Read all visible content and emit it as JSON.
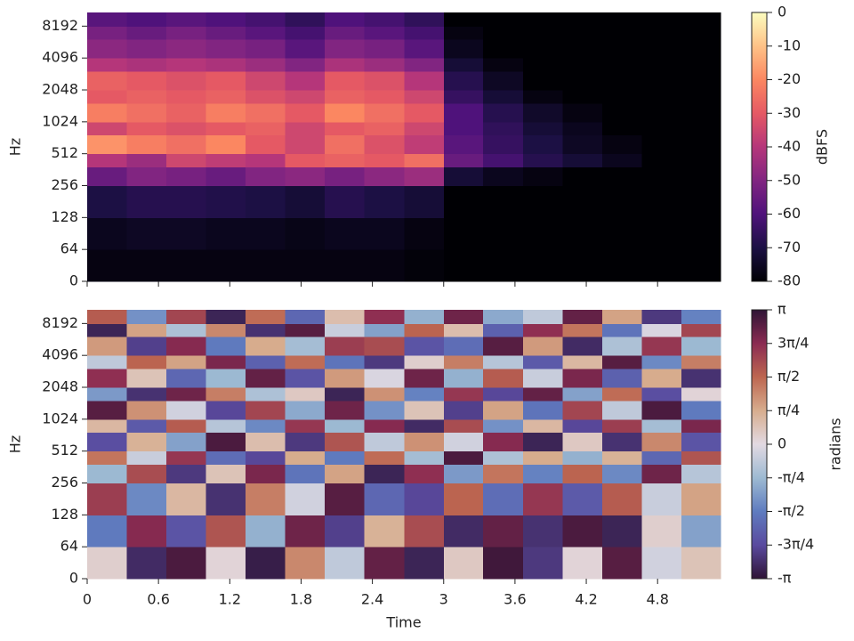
{
  "chart_data": [
    {
      "type": "heatmap",
      "ylabel": "Hz",
      "yscale": "symlog",
      "linthresh": 64,
      "colormap": "magma",
      "xlim": [
        0,
        5.33
      ],
      "ylim": [
        0,
        11025
      ],
      "xticks": [
        0,
        0.6,
        1.2,
        1.8,
        2.4,
        3,
        3.6,
        4.2,
        4.8
      ],
      "show_xtick_labels": false,
      "yticks": [
        0,
        64,
        128,
        256,
        512,
        1024,
        2048,
        4096,
        8192
      ],
      "x_bins": [
        0,
        0.333,
        0.667,
        1,
        1.333,
        1.667,
        2,
        2.333,
        2.667,
        3,
        3.333,
        3.667,
        4,
        4.333,
        4.667,
        5,
        5.33
      ],
      "y_bins": [
        0,
        64,
        128,
        256,
        384,
        512,
        768,
        1024,
        1536,
        2048,
        3072,
        4096,
        6144,
        8192,
        11025
      ],
      "z": [
        [
          -78,
          -78,
          -78,
          -78,
          -78,
          -78,
          -78,
          -78,
          -79,
          -80,
          -80,
          -80,
          -80,
          -80,
          -80,
          -80
        ],
        [
          -76,
          -75,
          -75,
          -76,
          -76,
          -77,
          -76,
          -76,
          -78,
          -80,
          -80,
          -80,
          -80,
          -80,
          -80,
          -80
        ],
        [
          -70,
          -68,
          -68,
          -69,
          -70,
          -72,
          -68,
          -70,
          -72,
          -80,
          -80,
          -80,
          -80,
          -80,
          -80,
          -80
        ],
        [
          -55,
          -50,
          -52,
          -55,
          -50,
          -48,
          -52,
          -48,
          -45,
          -72,
          -76,
          -78,
          -80,
          -80,
          -80,
          -80
        ],
        [
          -40,
          -45,
          -35,
          -38,
          -40,
          -30,
          -28,
          -30,
          -25,
          -55,
          -62,
          -68,
          -72,
          -76,
          -80,
          -80
        ],
        [
          -18,
          -22,
          -25,
          -20,
          -30,
          -35,
          -25,
          -32,
          -38,
          -58,
          -65,
          -70,
          -75,
          -78,
          -80,
          -80
        ],
        [
          -35,
          -30,
          -32,
          -30,
          -28,
          -35,
          -30,
          -28,
          -35,
          -60,
          -66,
          -72,
          -76,
          -80,
          -80,
          -80
        ],
        [
          -22,
          -25,
          -28,
          -22,
          -25,
          -30,
          -20,
          -25,
          -30,
          -60,
          -68,
          -74,
          -78,
          -80,
          -80,
          -80
        ],
        [
          -30,
          -28,
          -30,
          -28,
          -32,
          -35,
          -28,
          -30,
          -35,
          -65,
          -72,
          -78,
          -80,
          -80,
          -80,
          -80
        ],
        [
          -28,
          -30,
          -32,
          -30,
          -35,
          -40,
          -30,
          -32,
          -40,
          -68,
          -75,
          -80,
          -80,
          -80,
          -80,
          -80
        ],
        [
          -40,
          -42,
          -40,
          -42,
          -45,
          -50,
          -42,
          -45,
          -50,
          -72,
          -78,
          -80,
          -80,
          -80,
          -80,
          -80
        ],
        [
          -48,
          -50,
          -48,
          -50,
          -52,
          -58,
          -50,
          -52,
          -58,
          -76,
          -80,
          -80,
          -80,
          -80,
          -80,
          -80
        ],
        [
          -52,
          -55,
          -52,
          -55,
          -58,
          -62,
          -55,
          -58,
          -62,
          -78,
          -80,
          -80,
          -80,
          -80,
          -80,
          -80
        ],
        [
          -58,
          -60,
          -58,
          -60,
          -62,
          -66,
          -60,
          -62,
          -66,
          -80,
          -80,
          -80,
          -80,
          -80,
          -80,
          -80
        ]
      ],
      "colorbar": {
        "label": "dBFS",
        "lim": [
          -80,
          0
        ],
        "ticks": [
          0,
          -10,
          -20,
          -30,
          -40,
          -50,
          -60,
          -70,
          -80
        ]
      }
    },
    {
      "type": "heatmap",
      "ylabel": "Hz",
      "xlabel": "Time",
      "yscale": "symlog",
      "linthresh": 64,
      "colormap": "twilight",
      "xlim": [
        0,
        5.33
      ],
      "ylim": [
        0,
        11025
      ],
      "xticks": [
        0,
        0.6,
        1.2,
        1.8,
        2.4,
        3,
        3.6,
        4.2,
        4.8
      ],
      "show_xtick_labels": true,
      "yticks": [
        0,
        64,
        128,
        256,
        512,
        1024,
        2048,
        4096,
        8192
      ],
      "x_bins": [
        0,
        0.333,
        0.667,
        1,
        1.333,
        1.667,
        2,
        2.333,
        2.667,
        3,
        3.333,
        3.667,
        4,
        4.333,
        4.667,
        5,
        5.33
      ],
      "y_bins": [
        0,
        64,
        128,
        256,
        384,
        512,
        768,
        1024,
        1536,
        2048,
        3072,
        4096,
        6144,
        8192,
        11025
      ],
      "z": [
        [
          0.2,
          -2.8,
          2.9,
          0.1,
          -3.0,
          1.2,
          -0.4,
          2.7,
          -2.9,
          0.3,
          3.0,
          -2.6,
          0.1,
          2.8,
          -0.2,
          0.4
        ],
        [
          -1.6,
          2.4,
          -2.2,
          1.8,
          -0.9,
          2.6,
          -2.5,
          0.7,
          1.9,
          -2.8,
          2.7,
          -2.7,
          2.9,
          -2.9,
          0.2,
          -1.1
        ],
        [
          2.1,
          -1.4,
          0.6,
          -2.7,
          1.3,
          -0.2,
          2.8,
          -1.9,
          -2.4,
          1.6,
          -1.8,
          2.2,
          -2.1,
          1.7,
          -0.3,
          0.9
        ],
        [
          -0.8,
          1.9,
          -2.6,
          0.4,
          2.5,
          -1.7,
          0.9,
          -2.9,
          2.3,
          -1.2,
          1.4,
          -1.5,
          1.6,
          -1.4,
          2.6,
          -0.5
        ],
        [
          1.4,
          -0.3,
          2.2,
          -1.8,
          -2.4,
          0.8,
          -1.6,
          1.5,
          -0.7,
          2.9,
          -0.6,
          0.8,
          -0.9,
          0.7,
          -1.9,
          1.8
        ],
        [
          -2.3,
          0.7,
          -1.1,
          2.9,
          0.5,
          -2.6,
          1.8,
          -0.4,
          1.1,
          -0.2,
          2.4,
          -2.9,
          0.3,
          -2.7,
          1.2,
          -2.2
        ],
        [
          0.6,
          -2.1,
          1.7,
          -0.5,
          -1.4,
          2.2,
          -0.8,
          2.4,
          -2.8,
          1.9,
          -1.3,
          0.6,
          -2.4,
          2.1,
          -0.7,
          2.5
        ],
        [
          2.8,
          1.1,
          -0.2,
          -2.4,
          2.0,
          -1.0,
          2.6,
          -1.3,
          0.4,
          -2.5,
          0.9,
          -1.7,
          2.0,
          -0.4,
          2.9,
          -1.6
        ],
        [
          -1.2,
          -2.7,
          2.6,
          1.3,
          -0.6,
          0.3,
          -2.9,
          1.1,
          -1.5,
          2.2,
          -2.4,
          2.7,
          -1.1,
          1.5,
          -2.3,
          0.1
        ],
        [
          2.3,
          0.4,
          -1.9,
          -0.8,
          2.7,
          -2.2,
          1.0,
          -0.1,
          2.6,
          -0.9,
          1.7,
          -0.3,
          2.5,
          -2.0,
          0.8,
          -2.7
        ],
        [
          -0.4,
          1.6,
          0.9,
          2.5,
          -2.0,
          1.5,
          -1.7,
          -2.6,
          0.2,
          1.3,
          -0.5,
          -2.1,
          0.6,
          2.8,
          -1.4,
          1.3
        ],
        [
          1.0,
          -2.5,
          2.4,
          -1.6,
          0.8,
          -0.7,
          2.1,
          1.9,
          -2.2,
          -1.8,
          2.8,
          1.0,
          -2.8,
          -0.6,
          2.2,
          -0.8
        ],
        [
          -2.9,
          0.9,
          -0.6,
          1.2,
          -2.7,
          2.8,
          -0.3,
          -1.1,
          1.6,
          0.5,
          -2.0,
          2.3,
          1.4,
          -1.7,
          -0.1,
          2.0
        ],
        [
          1.7,
          -1.3,
          2.0,
          -2.9,
          1.5,
          -1.9,
          0.5,
          2.3,
          -0.9,
          2.6,
          -1.0,
          -0.4,
          2.7,
          0.9,
          -2.6,
          -1.5
        ]
      ],
      "colorbar": {
        "label": "radians",
        "lim": [
          -3.141593,
          3.141593
        ],
        "ticks": [
          {
            "value": 3.141593,
            "label": "π"
          },
          {
            "value": 2.356194,
            "label": "3π/4"
          },
          {
            "value": 1.570796,
            "label": "π/2"
          },
          {
            "value": 0.785398,
            "label": "π/4"
          },
          0,
          {
            "value": -0.785398,
            "label": "-π/4"
          },
          {
            "value": -1.570796,
            "label": "-π/2"
          },
          {
            "value": -2.356194,
            "label": "-3π/4"
          },
          {
            "value": -3.141593,
            "label": "-π"
          }
        ]
      }
    }
  ]
}
